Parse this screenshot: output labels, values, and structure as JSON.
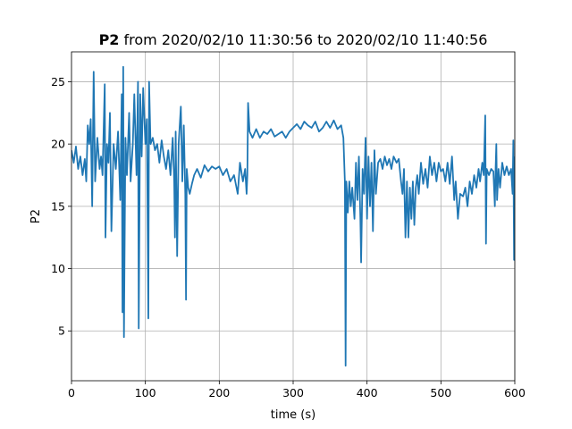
{
  "chart_data": {
    "type": "line",
    "title": {
      "bold": "P2",
      "rest": "from 2020/02/10 11:30:56 to 2020/02/10 11:40:56"
    },
    "xlabel": "time (s)",
    "ylabel": "P2",
    "xlim": [
      0,
      600
    ],
    "ylim": [
      1.0,
      27.4
    ],
    "xticks": [
      0,
      100,
      200,
      300,
      400,
      500,
      600
    ],
    "yticks": [
      5,
      10,
      15,
      20,
      25
    ],
    "grid": true,
    "color": "#1f77b4",
    "x": [
      0,
      3,
      6,
      9,
      12,
      15,
      18,
      20,
      22,
      24,
      26,
      28,
      30,
      32,
      35,
      38,
      40,
      42,
      45,
      46,
      48,
      50,
      52,
      54,
      57,
      60,
      63,
      66,
      68,
      69,
      70,
      71,
      73,
      75,
      78,
      80,
      83,
      85,
      88,
      90,
      91,
      93,
      95,
      97,
      100,
      102,
      104,
      105,
      107,
      110,
      113,
      116,
      119,
      122,
      125,
      128,
      131,
      134,
      137,
      139,
      140,
      141,
      143,
      145,
      148,
      150,
      152,
      154,
      155,
      156,
      158,
      160,
      163,
      166,
      170,
      175,
      180,
      185,
      190,
      195,
      200,
      205,
      210,
      215,
      220,
      225,
      228,
      232,
      235,
      237,
      238,
      239,
      241,
      245,
      250,
      255,
      260,
      265,
      270,
      275,
      280,
      285,
      290,
      295,
      300,
      305,
      310,
      315,
      320,
      325,
      330,
      335,
      340,
      345,
      350,
      355,
      360,
      365,
      368,
      370,
      371,
      372,
      374,
      376,
      378,
      380,
      383,
      385,
      387,
      389,
      391,
      392,
      394,
      396,
      398,
      400,
      402,
      404,
      406,
      408,
      410,
      412,
      415,
      418,
      421,
      424,
      427,
      430,
      433,
      436,
      440,
      443,
      446,
      448,
      450,
      452,
      454,
      456,
      458,
      460,
      462,
      464,
      466,
      468,
      470,
      473,
      476,
      479,
      482,
      485,
      488,
      491,
      494,
      497,
      500,
      503,
      506,
      509,
      512,
      515,
      518,
      520,
      523,
      526,
      530,
      533,
      536,
      539,
      542,
      545,
      548,
      551,
      553,
      556,
      558,
      560,
      561,
      562,
      565,
      568,
      571,
      573,
      574,
      575,
      576,
      578,
      580,
      583,
      586,
      589,
      592,
      595,
      597,
      598,
      599,
      600
    ],
    "values": [
      19.5,
      18.5,
      19.8,
      18.0,
      19.0,
      17.5,
      18.8,
      17.0,
      21.5,
      20.0,
      22.0,
      15.0,
      25.8,
      17.0,
      20.5,
      18.0,
      19.0,
      17.5,
      24.8,
      12.5,
      20.0,
      18.5,
      22.5,
      13.0,
      20.0,
      18.0,
      21.0,
      15.5,
      24.0,
      6.5,
      26.2,
      4.5,
      20.5,
      17.5,
      22.5,
      17.0,
      20.0,
      24.0,
      17.5,
      25.0,
      5.2,
      24.0,
      19.0,
      24.5,
      20.0,
      22.0,
      6.0,
      25.0,
      20.0,
      20.5,
      19.5,
      20.0,
      18.5,
      20.3,
      19.0,
      18.0,
      19.5,
      17.5,
      20.5,
      17.0,
      12.5,
      21.0,
      11.0,
      20.0,
      23.0,
      17.0,
      21.5,
      16.0,
      7.5,
      18.0,
      16.5,
      16.0,
      16.8,
      17.5,
      18.0,
      17.3,
      18.3,
      17.8,
      18.2,
      18.0,
      18.2,
      17.5,
      18.0,
      17.0,
      17.5,
      16.0,
      18.5,
      17.0,
      18.0,
      16.0,
      17.5,
      23.3,
      21.0,
      20.5,
      21.2,
      20.5,
      21.0,
      20.8,
      21.2,
      20.6,
      20.8,
      21.0,
      20.5,
      21.0,
      21.3,
      21.6,
      21.2,
      21.8,
      21.5,
      21.3,
      21.8,
      21.0,
      21.3,
      21.8,
      21.3,
      21.9,
      21.2,
      21.5,
      20.5,
      17.0,
      2.2,
      17.0,
      14.5,
      17.0,
      15.0,
      16.5,
      14.0,
      18.5,
      15.5,
      19.0,
      14.0,
      10.5,
      18.0,
      16.0,
      20.5,
      14.0,
      19.0,
      15.0,
      18.5,
      13.0,
      19.5,
      16.0,
      18.5,
      18.8,
      18.0,
      19.0,
      18.3,
      18.8,
      18.0,
      19.0,
      18.5,
      18.8,
      17.0,
      16.0,
      18.0,
      12.5,
      17.0,
      12.5,
      16.5,
      14.0,
      17.0,
      13.5,
      16.5,
      17.5,
      16.0,
      18.5,
      16.8,
      18.0,
      16.5,
      19.0,
      17.5,
      18.5,
      17.0,
      18.5,
      17.8,
      18.0,
      17.0,
      18.5,
      16.8,
      19.0,
      15.5,
      17.0,
      14.0,
      16.0,
      15.8,
      16.5,
      15.0,
      17.0,
      16.0,
      17.5,
      16.5,
      18.0,
      17.0,
      18.5,
      17.5,
      22.3,
      12.0,
      18.0,
      17.5,
      18.0,
      17.8,
      15.0,
      18.0,
      20.0,
      15.5,
      18.0,
      16.5,
      18.5,
      17.5,
      18.2,
      17.5,
      18.0,
      16.0,
      20.3,
      10.7,
      19.0
    ]
  }
}
